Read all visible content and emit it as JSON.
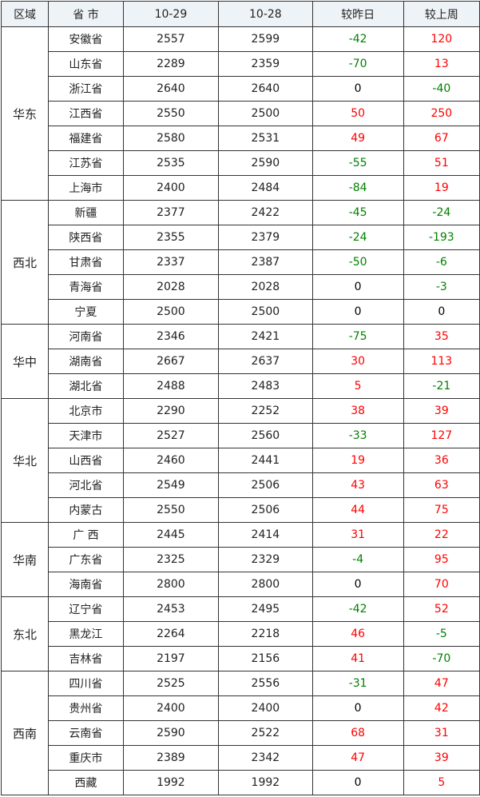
{
  "colors": {
    "up": "#ff0000",
    "down": "#008000",
    "header_bg": "#eef3f7"
  },
  "headers": [
    "区域",
    "省 市",
    "10-29",
    "10-28",
    "较昨日",
    "较上周"
  ],
  "groups": [
    {
      "region": "华东",
      "rows": [
        [
          "安徽省",
          "2557",
          "2599",
          "-42",
          "120"
        ],
        [
          "山东省",
          "2289",
          "2359",
          "-70",
          "13"
        ],
        [
          "浙江省",
          "2640",
          "2640",
          "0",
          "-40"
        ],
        [
          "江西省",
          "2550",
          "2500",
          "50",
          "250"
        ],
        [
          "福建省",
          "2580",
          "2531",
          "49",
          "67"
        ],
        [
          "江苏省",
          "2535",
          "2590",
          "-55",
          "51"
        ],
        [
          "上海市",
          "2400",
          "2484",
          "-84",
          "19"
        ]
      ]
    },
    {
      "region": "西北",
      "rows": [
        [
          "新疆",
          "2377",
          "2422",
          "-45",
          "-24"
        ],
        [
          "陕西省",
          "2355",
          "2379",
          "-24",
          "-193"
        ],
        [
          "甘肃省",
          "2337",
          "2387",
          "-50",
          "-6"
        ],
        [
          "青海省",
          "2028",
          "2028",
          "0",
          "-3"
        ],
        [
          "宁夏",
          "2500",
          "2500",
          "0",
          "0"
        ]
      ]
    },
    {
      "region": "华中",
      "rows": [
        [
          "河南省",
          "2346",
          "2421",
          "-75",
          "35"
        ],
        [
          "湖南省",
          "2667",
          "2637",
          "30",
          "113"
        ],
        [
          "湖北省",
          "2488",
          "2483",
          "5",
          "-21"
        ]
      ]
    },
    {
      "region": "华北",
      "rows": [
        [
          "北京市",
          "2290",
          "2252",
          "38",
          "39"
        ],
        [
          "天津市",
          "2527",
          "2560",
          "-33",
          "127"
        ],
        [
          "山西省",
          "2460",
          "2441",
          "19",
          "36"
        ],
        [
          "河北省",
          "2549",
          "2506",
          "43",
          "63"
        ],
        [
          "内蒙古",
          "2550",
          "2506",
          "44",
          "75"
        ]
      ]
    },
    {
      "region": "华南",
      "rows": [
        [
          "广 西",
          "2445",
          "2414",
          "31",
          "22"
        ],
        [
          "广东省",
          "2325",
          "2329",
          "-4",
          "95"
        ],
        [
          "海南省",
          "2800",
          "2800",
          "0",
          "70"
        ]
      ]
    },
    {
      "region": "东北",
      "rows": [
        [
          "辽宁省",
          "2453",
          "2495",
          "-42",
          "52"
        ],
        [
          "黑龙江",
          "2264",
          "2218",
          "46",
          "-5"
        ],
        [
          "吉林省",
          "2197",
          "2156",
          "41",
          "-70"
        ]
      ]
    },
    {
      "region": "西南",
      "rows": [
        [
          "四川省",
          "2525",
          "2556",
          "-31",
          "47"
        ],
        [
          "贵州省",
          "2400",
          "2400",
          "0",
          "42"
        ],
        [
          "云南省",
          "2590",
          "2522",
          "68",
          "31"
        ],
        [
          "重庆市",
          "2389",
          "2342",
          "47",
          "39"
        ],
        [
          "西藏",
          "1992",
          "1992",
          "0",
          "5"
        ]
      ]
    }
  ]
}
